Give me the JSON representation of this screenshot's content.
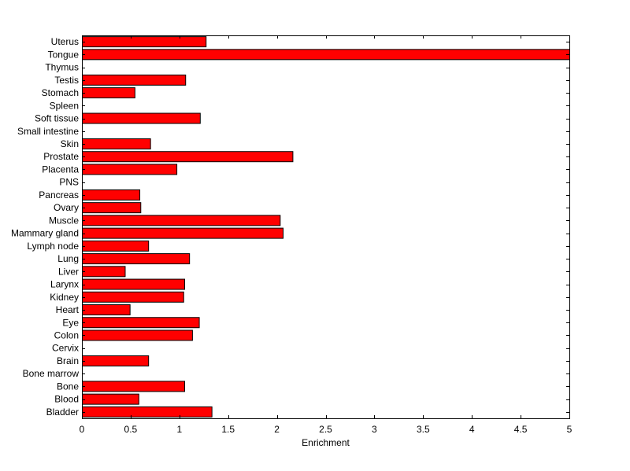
{
  "chart_data": {
    "type": "bar",
    "orientation": "horizontal",
    "title": "",
    "xlabel": "Enrichment",
    "ylabel": "",
    "xlim": [
      0,
      5
    ],
    "xticks": [
      0,
      0.5,
      1,
      1.5,
      2,
      2.5,
      3,
      3.5,
      4,
      4.5,
      5
    ],
    "xtick_labels": [
      "0",
      "0.5",
      "1",
      "1.5",
      "2",
      "2.5",
      "3",
      "3.5",
      "4",
      "4.5",
      "5"
    ],
    "grid": false,
    "legend": "none",
    "bar_color": "#ff0000",
    "edge_color": "#000000",
    "categories": [
      "Uterus",
      "Tongue",
      "Thymus",
      "Testis",
      "Stomach",
      "Spleen",
      "Soft tissue",
      "Small intestine",
      "Skin",
      "Prostate",
      "Placenta",
      "PNS",
      "Pancreas",
      "Ovary",
      "Muscle",
      "Mammary gland",
      "Lymph node",
      "Lung",
      "Liver",
      "Larynx",
      "Kidney",
      "Heart",
      "Eye",
      "Colon",
      "Cervix",
      "Brain",
      "Bone marrow",
      "Bone",
      "Blood",
      "Bladder"
    ],
    "values": [
      1.27,
      5.0,
      0,
      1.06,
      0.54,
      0,
      1.21,
      0,
      0.7,
      2.16,
      0.97,
      0,
      0.59,
      0.6,
      2.03,
      2.06,
      0.68,
      1.1,
      0.44,
      1.05,
      1.04,
      0.49,
      1.2,
      1.13,
      0,
      0.68,
      0,
      1.05,
      0.58,
      1.33
    ]
  }
}
